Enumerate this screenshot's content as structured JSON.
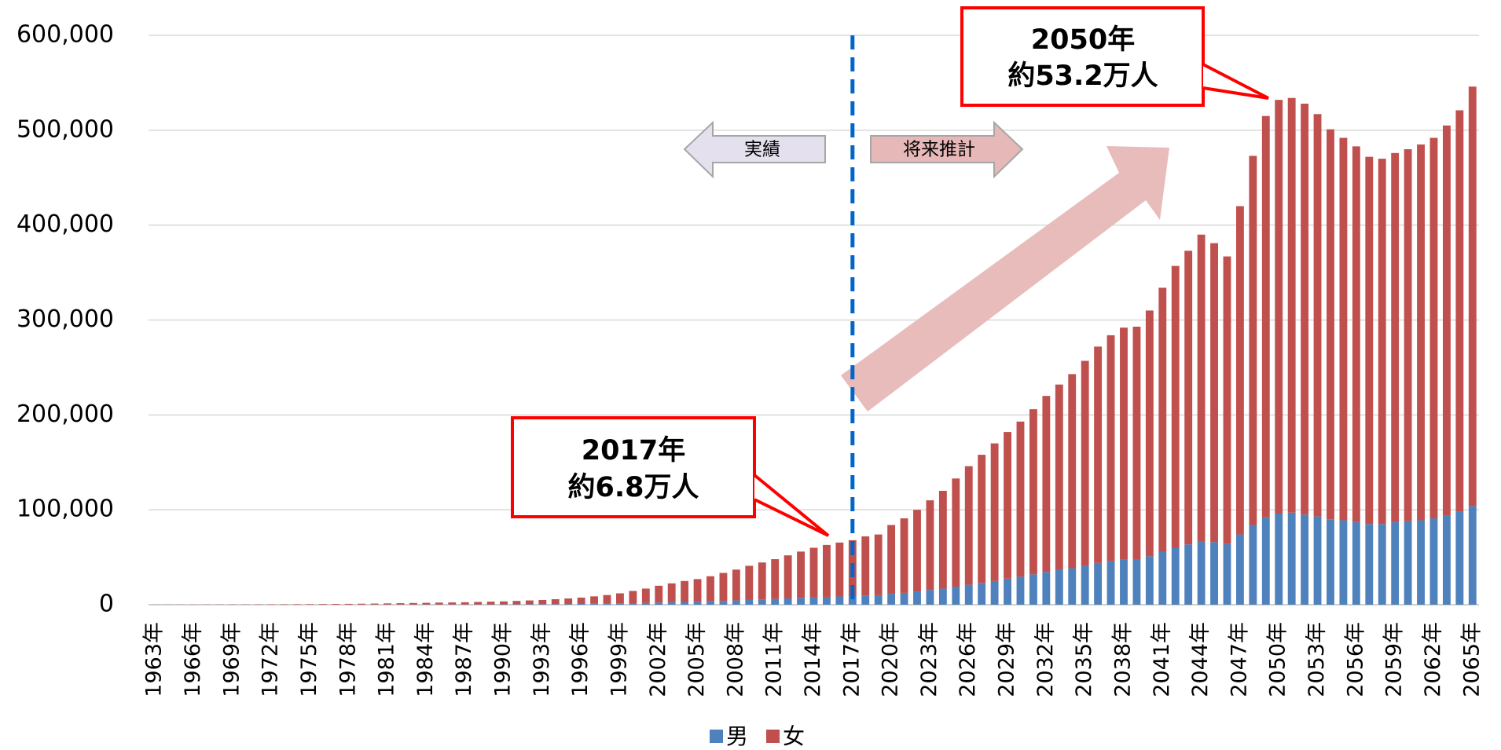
{
  "chart_data": {
    "type": "stacked_bar",
    "categories": [
      "1963年",
      null,
      null,
      "1966年",
      null,
      null,
      "1969年",
      null,
      null,
      "1972年",
      null,
      null,
      "1975年",
      null,
      null,
      "1978年",
      null,
      null,
      "1981年",
      null,
      null,
      "1984年",
      null,
      null,
      "1987年",
      null,
      null,
      "1990年",
      null,
      null,
      "1993年",
      null,
      null,
      "1996年",
      null,
      null,
      "1999年",
      null,
      null,
      "2002年",
      null,
      null,
      "2005年",
      null,
      null,
      "2008年",
      null,
      null,
      "2011年",
      null,
      null,
      "2014年",
      null,
      null,
      "2017年",
      null,
      null,
      "2020年",
      null,
      null,
      "2023年",
      null,
      null,
      "2026年",
      null,
      null,
      "2029年",
      null,
      null,
      "2032年",
      null,
      null,
      "2035年",
      null,
      null,
      "2038年",
      null,
      null,
      "2041年",
      null,
      null,
      "2044年",
      null,
      null,
      "2047年",
      null,
      null,
      "2050年",
      null,
      null,
      "2053年",
      null,
      null,
      "2056年",
      null,
      null,
      "2059年",
      null,
      null,
      "2062年",
      null,
      null,
      "2065年"
    ],
    "series": [
      {
        "name": "男",
        "color": "#4f81bd",
        "values": [
          10,
          12,
          14,
          16,
          19,
          22,
          26,
          30,
          35,
          40,
          46,
          52,
          60,
          68,
          78,
          90,
          105,
          120,
          140,
          160,
          180,
          200,
          220,
          240,
          260,
          300,
          330,
          370,
          420,
          480,
          540,
          630,
          720,
          830,
          980,
          1150,
          1350,
          1650,
          1950,
          2300,
          2600,
          2900,
          3200,
          3600,
          4000,
          4500,
          5000,
          5500,
          6000,
          6600,
          7200,
          7800,
          8300,
          8700,
          9100,
          9700,
          10000,
          11500,
          12500,
          14000,
          15500,
          17000,
          19000,
          21000,
          23000,
          25000,
          27500,
          29500,
          32000,
          34500,
          36500,
          38500,
          41000,
          44000,
          46000,
          47500,
          48000,
          51000,
          55500,
          60000,
          63500,
          67000,
          66000,
          64000,
          74000,
          84000,
          92000,
          96000,
          97000,
          95000,
          93000,
          90000,
          89000,
          87000,
          85000,
          85000,
          87000,
          88000,
          89000,
          91000,
          94000,
          98000,
          104000
        ]
      },
      {
        "name": "女",
        "color": "#c0504d",
        "values": [
          90,
          108,
          126,
          144,
          171,
          198,
          234,
          270,
          315,
          360,
          414,
          468,
          540,
          612,
          702,
          810,
          945,
          1080,
          1260,
          1440,
          1620,
          1800,
          1980,
          2160,
          2340,
          2600,
          2870,
          3130,
          3580,
          4020,
          4460,
          5170,
          5880,
          6670,
          7820,
          9050,
          10650,
          12850,
          15050,
          17700,
          19900,
          22100,
          23800,
          26400,
          29500,
          32500,
          36000,
          39000,
          42000,
          45400,
          48800,
          52200,
          54700,
          56800,
          58900,
          62300,
          64000,
          72500,
          78500,
          86000,
          94500,
          103000,
          114000,
          125000,
          135000,
          145000,
          154500,
          163500,
          174000,
          185500,
          195500,
          204500,
          216000,
          228000,
          238000,
          244500,
          245000,
          259000,
          278500,
          297000,
          309500,
          323000,
          315000,
          303000,
          346000,
          389000,
          423000,
          436000,
          437000,
          433000,
          424000,
          411000,
          403000,
          396000,
          387000,
          385000,
          389000,
          392000,
          396000,
          401000,
          411000,
          423000,
          442000
        ]
      }
    ],
    "ylim": [
      0,
      600000
    ],
    "yticks": [
      {
        "value": 0,
        "label": "0"
      },
      {
        "value": 100000,
        "label": "100,000"
      },
      {
        "value": 200000,
        "label": "200,000"
      },
      {
        "value": 300000,
        "label": "300,000"
      },
      {
        "value": 400000,
        "label": "400,000"
      },
      {
        "value": 500000,
        "label": "500,000"
      },
      {
        "value": 600000,
        "label": "600,000"
      }
    ],
    "grid": true,
    "legend": "bottom",
    "callouts": [
      {
        "lines": [
          "2050年",
          "約53.2万人"
        ]
      },
      {
        "lines": [
          "2017年",
          "約6.8万人"
        ]
      }
    ],
    "period_labels": [
      "実績",
      "将来推計"
    ]
  }
}
